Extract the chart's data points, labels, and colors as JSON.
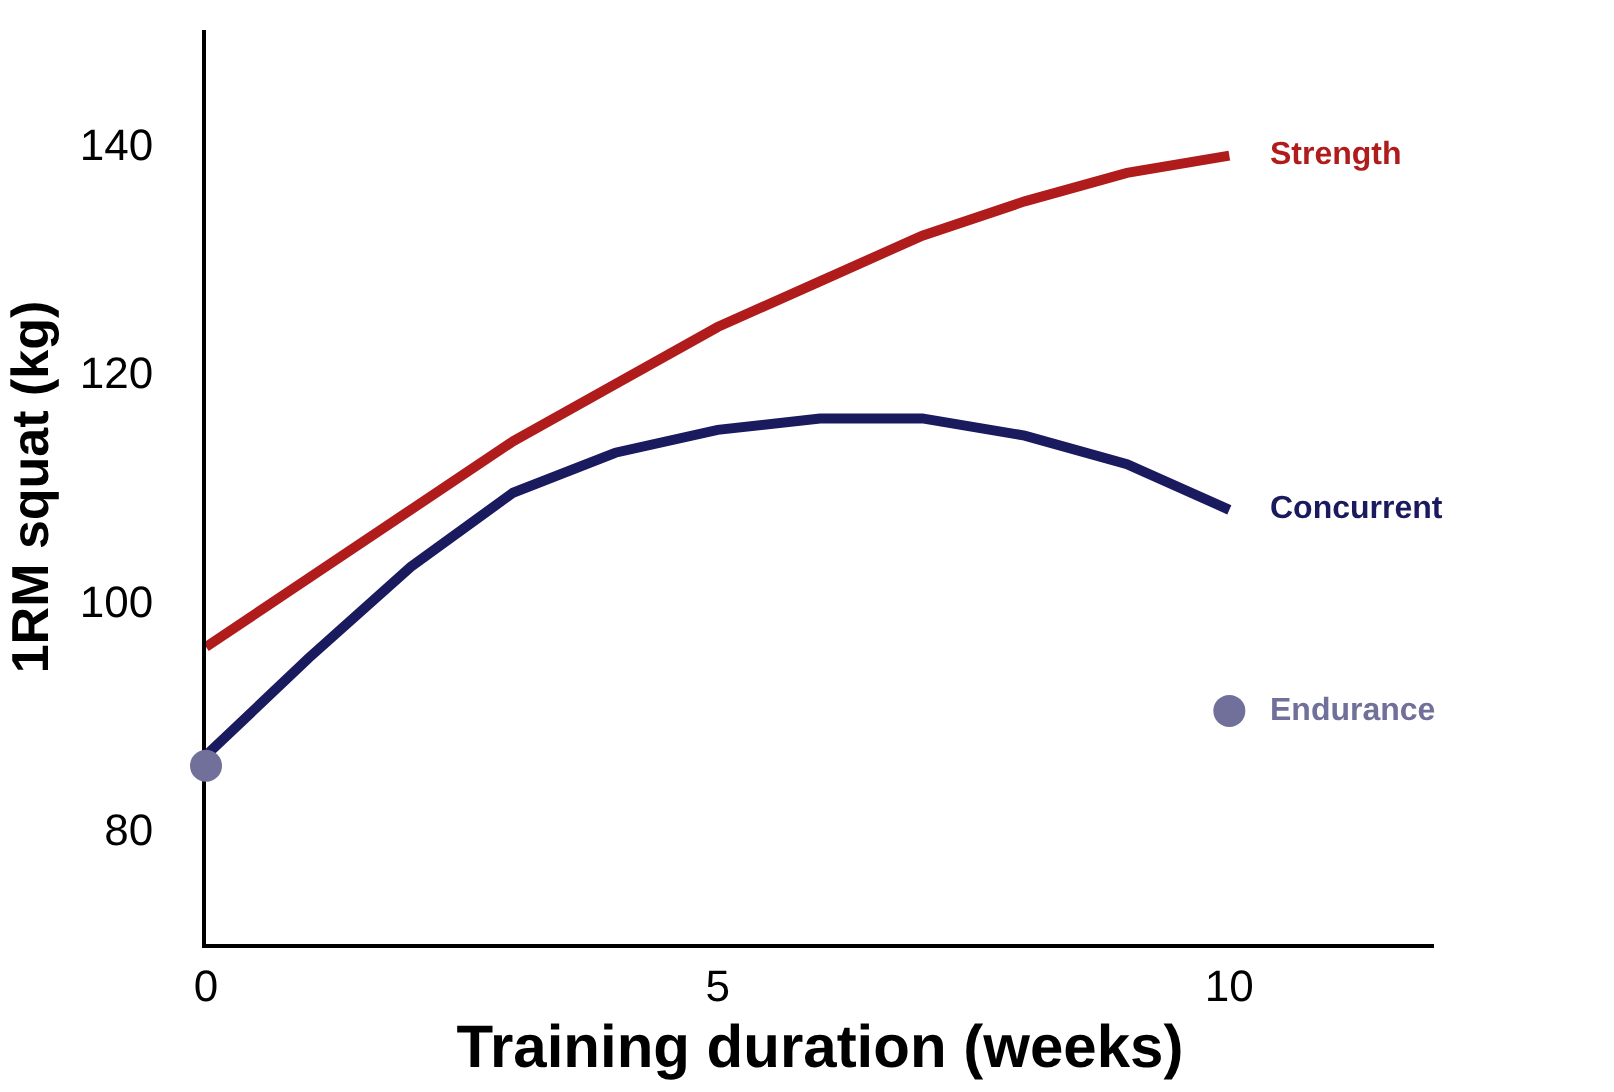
{
  "chart_data": {
    "type": "line",
    "xlabel": "Training duration (weeks)",
    "ylabel": "1RM squat (kg)",
    "xlim": [
      0,
      12
    ],
    "xticks": [
      0,
      5,
      10
    ],
    "ylim": [
      70,
      150
    ],
    "yticks": [
      80,
      100,
      120,
      140
    ],
    "legend": false,
    "marker": "none",
    "line_style": "solid",
    "series": [
      {
        "name": "Strength",
        "color": "#b01c1c",
        "x": [
          0,
          1,
          2,
          3,
          4,
          5,
          6,
          7,
          8,
          9,
          10
        ],
        "values": [
          96,
          102,
          108,
          114,
          119,
          124,
          128,
          132,
          135,
          137.5,
          139
        ]
      },
      {
        "name": "Concurrent",
        "color": "#1a1a5e",
        "x": [
          0,
          1,
          2,
          3,
          4,
          5,
          6,
          7,
          8,
          9,
          10
        ],
        "values": [
          86.5,
          95,
          103,
          109.5,
          113,
          115,
          116,
          116,
          114.5,
          112,
          108
        ]
      },
      {
        "name": "Endurance",
        "color": "#70709a",
        "type": "scatter",
        "marker": "circle",
        "x": [
          0,
          10
        ],
        "values": [
          85.6,
          90.4
        ]
      }
    ]
  }
}
